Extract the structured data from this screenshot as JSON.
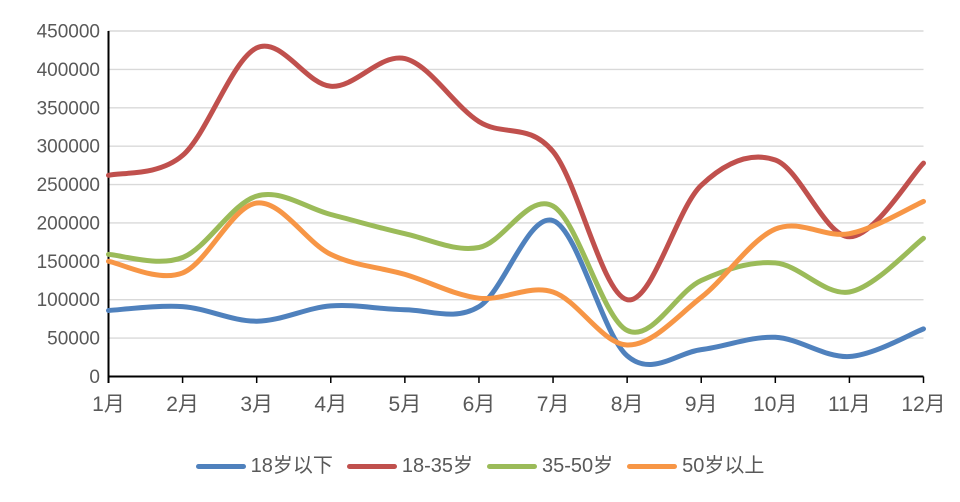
{
  "chart_data": {
    "type": "line",
    "smooth": true,
    "title": "",
    "xlabel": "",
    "ylabel": "",
    "categories": [
      "1月",
      "2月",
      "3月",
      "4月",
      "5月",
      "6月",
      "7月",
      "8月",
      "9月",
      "10月",
      "11月",
      "12月"
    ],
    "series": [
      {
        "name": "18岁以下",
        "color": "#4F81BD",
        "values": [
          86000,
          91000,
          72000,
          92000,
          87000,
          91000,
          203000,
          27000,
          35000,
          51000,
          26000,
          62000
        ]
      },
      {
        "name": "18-35岁",
        "color": "#C0504D",
        "values": [
          262000,
          288000,
          428000,
          378000,
          414000,
          332000,
          293000,
          100000,
          249000,
          282000,
          182000,
          278000
        ]
      },
      {
        "name": "35-50岁",
        "color": "#9BBB59",
        "values": [
          159000,
          155000,
          235000,
          211000,
          186000,
          168000,
          222000,
          60000,
          125000,
          148000,
          110000,
          180000
        ]
      },
      {
        "name": "50岁以上",
        "color": "#F79646",
        "values": [
          150000,
          135000,
          226000,
          159000,
          133000,
          102000,
          110000,
          41000,
          103000,
          192000,
          186000,
          228000
        ]
      }
    ],
    "ylim": [
      0,
      450000
    ],
    "ytick_step": 50000,
    "ytick_labels": [
      "0",
      "50000",
      "100000",
      "150000",
      "200000",
      "250000",
      "300000",
      "350000",
      "400000",
      "450000"
    ],
    "grid": true,
    "legend_position": "bottom",
    "colors": {
      "axis": "#000000",
      "gridline": "#D9D9D9",
      "tick_label": "#595959",
      "background": "#FFFFFF"
    }
  }
}
